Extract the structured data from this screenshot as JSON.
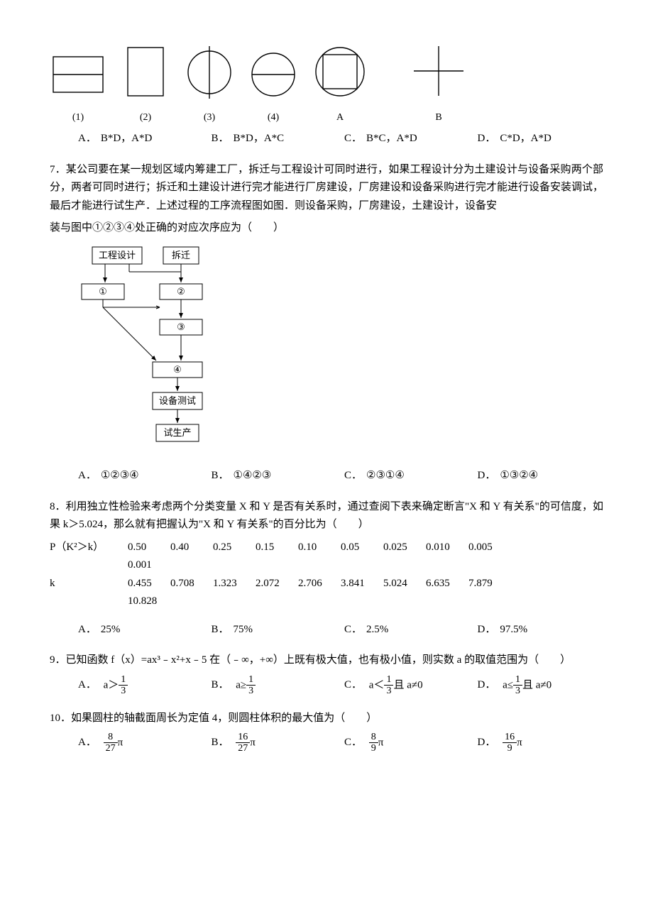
{
  "q6": {
    "fig_labels": [
      "(1)",
      "(2)",
      "(3)",
      "(4)",
      "A",
      "B"
    ],
    "options": [
      {
        "letter": "A．",
        "text": "B*D，A*D"
      },
      {
        "letter": "B．",
        "text": "B*D，A*C"
      },
      {
        "letter": "C．",
        "text": "B*C，A*D"
      },
      {
        "letter": "D．",
        "text": "C*D，A*D"
      }
    ],
    "svg": {
      "stroke": "#000000",
      "stroke_width": 1.4,
      "item_gap": 20
    }
  },
  "q7": {
    "text": "7．某公司要在某一规划区域内筹建工厂，拆迁与工程设计可同时进行，如果工程设计分为土建设计与设备采购两个部分，两者可同时进行；拆迁和土建设计进行完才能进行厂房建设，厂房建设和设备采购进行完才能进行设备安装调试，最后才能进行试生产．上述过程的工序流程图如图．则设备采购，厂房建设，土建设计，设备安",
    "text2": "装与图中①②③④处正确的对应次序应为（　　）",
    "flow": {
      "boxes": {
        "eng": "工程设计",
        "demo": "拆迁",
        "n1": "①",
        "n2": "②",
        "n3": "③",
        "n4": "④",
        "test": "设备测试",
        "trial": "试生产"
      },
      "box_stroke": "#000000",
      "box_fill": "#ffffff",
      "font_size": 13
    },
    "options": [
      {
        "letter": "A．",
        "text": "①②③④"
      },
      {
        "letter": "B．",
        "text": "①④②③"
      },
      {
        "letter": "C．",
        "text": "②③①④"
      },
      {
        "letter": "D．",
        "text": "①③②④"
      }
    ]
  },
  "q8": {
    "text_a": "8．利用独立性检验来考虑两个分类变量 X 和 Y 是否有关系时，通过查阅下表来确定断言\"X 和 Y 有关系\"的可信度，如果 k＞5.024，那么就有把握认为\"X 和 Y 有关系\"的百分比为（　　）",
    "row1_label": "P（K²＞k）",
    "row2_label": "k",
    "p_vals": [
      "0.50",
      "0.40",
      "0.25",
      "0.15",
      "0.10",
      "0.05",
      "0.025",
      "0.010",
      "0.005"
    ],
    "p_extra": "0.001",
    "k_vals": [
      "0.455",
      "0.708",
      "1.323",
      "2.072",
      "2.706",
      "3.841",
      "5.024",
      "6.635",
      "7.879"
    ],
    "k_extra": "10.828",
    "options": [
      {
        "letter": "A．",
        "text": "25%"
      },
      {
        "letter": "B．",
        "text": "75%"
      },
      {
        "letter": "C．",
        "text": "2.5%"
      },
      {
        "letter": "D．",
        "text": "97.5%"
      }
    ]
  },
  "q9": {
    "text": "9．已知函数 f（x）=ax³﹣x²+x﹣5 在（﹣∞，+∞）上既有极大值，也有极小值，则实数 a 的取值范围为（　　）",
    "options": [
      {
        "letter": "A．",
        "pre": "a＞",
        "num": "1",
        "den": "3",
        "post": ""
      },
      {
        "letter": "B．",
        "pre": "a≥",
        "num": "1",
        "den": "3",
        "post": ""
      },
      {
        "letter": "C．",
        "pre": "a＜",
        "num": "1",
        "den": "3",
        "post": "且 a≠0"
      },
      {
        "letter": "D．",
        "pre": "a≤",
        "num": "1",
        "den": "3",
        "post": "且 a≠0"
      }
    ]
  },
  "q10": {
    "text": "10．如果圆柱的轴截面周长为定值 4，则圆柱体积的最大值为（　　）",
    "options": [
      {
        "letter": "A．",
        "num": "8",
        "den": "27",
        "post": "π"
      },
      {
        "letter": "B．",
        "num": "16",
        "den": "27",
        "post": "π"
      },
      {
        "letter": "C．",
        "num": "8",
        "den": "9",
        "post": "π"
      },
      {
        "letter": "D．",
        "num": "16",
        "den": "9",
        "post": "π"
      }
    ]
  }
}
